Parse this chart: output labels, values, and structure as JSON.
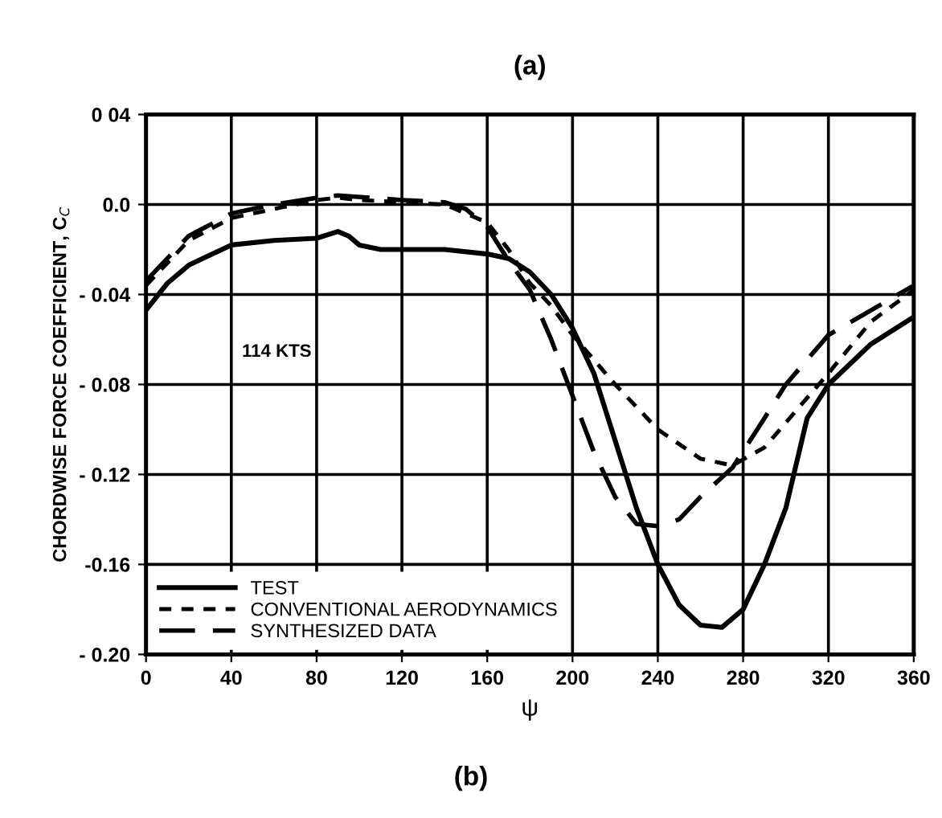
{
  "chart_data": {
    "type": "line",
    "title": "(a)",
    "xlabel": "ψ",
    "ylabel": "CHORDWISE FORCE COEFFICIENT, C$_{C}$",
    "annotations": [
      "114 KTS",
      "(b)"
    ],
    "xlim": [
      0,
      360
    ],
    "xticks": [
      0,
      40,
      80,
      120,
      160,
      200,
      240,
      280,
      320,
      360
    ],
    "ylim": [
      -0.2,
      0.04
    ],
    "yticks": [
      {
        "value": -0.2,
        "label": "- 0.20"
      },
      {
        "value": -0.16,
        "label": "-0.16"
      },
      {
        "value": -0.12,
        "label": "- 0.12"
      },
      {
        "value": -0.08,
        "label": "- 0.08"
      },
      {
        "value": -0.04,
        "label": "- 0.04"
      },
      {
        "value": 0.0,
        "label": "0.0"
      },
      {
        "value": 0.04,
        "label": "0 04"
      }
    ],
    "grid": true,
    "legend": "bottom left",
    "series": [
      {
        "name": "TEST",
        "color": "#000000",
        "line_style": "solid",
        "x": [
          0,
          10,
          20,
          40,
          60,
          80,
          90,
          95,
          100,
          110,
          140,
          160,
          170,
          180,
          190,
          200,
          210,
          220,
          230,
          240,
          250,
          260,
          270,
          280,
          290,
          300,
          305,
          310,
          320,
          340,
          360
        ],
        "values": [
          -0.047,
          -0.035,
          -0.027,
          -0.018,
          -0.016,
          -0.015,
          -0.012,
          -0.014,
          -0.018,
          -0.02,
          -0.02,
          -0.022,
          -0.024,
          -0.03,
          -0.04,
          -0.055,
          -0.075,
          -0.105,
          -0.135,
          -0.16,
          -0.178,
          -0.187,
          -0.188,
          -0.18,
          -0.16,
          -0.135,
          -0.115,
          -0.095,
          -0.08,
          -0.062,
          -0.05
        ]
      },
      {
        "name": "CONVENTIONAL AERODYNAMICS",
        "color": "#000000",
        "line_style": "dotted",
        "x": [
          0,
          20,
          40,
          60,
          80,
          90,
          100,
          120,
          140,
          160,
          170,
          180,
          190,
          200,
          220,
          240,
          260,
          275,
          290,
          300,
          320,
          340,
          360
        ],
        "values": [
          -0.036,
          -0.016,
          -0.006,
          -0.002,
          0.002,
          0.003,
          0.002,
          0.001,
          0.0,
          -0.008,
          -0.02,
          -0.035,
          -0.045,
          -0.058,
          -0.08,
          -0.1,
          -0.113,
          -0.116,
          -0.108,
          -0.097,
          -0.075,
          -0.052,
          -0.038
        ]
      },
      {
        "name": "SYNTHESIZED DATA",
        "color": "#000000",
        "line_style": "dashed",
        "x": [
          0,
          20,
          40,
          60,
          80,
          90,
          120,
          140,
          150,
          160,
          170,
          180,
          190,
          200,
          210,
          220,
          230,
          240,
          250,
          260,
          275,
          290,
          300,
          320,
          340,
          360
        ],
        "values": [
          -0.034,
          -0.014,
          -0.004,
          0.0,
          0.003,
          0.004,
          0.002,
          0.001,
          -0.002,
          -0.01,
          -0.025,
          -0.038,
          -0.06,
          -0.085,
          -0.11,
          -0.13,
          -0.142,
          -0.143,
          -0.14,
          -0.13,
          -0.117,
          -0.095,
          -0.08,
          -0.058,
          -0.047,
          -0.036
        ]
      }
    ]
  }
}
